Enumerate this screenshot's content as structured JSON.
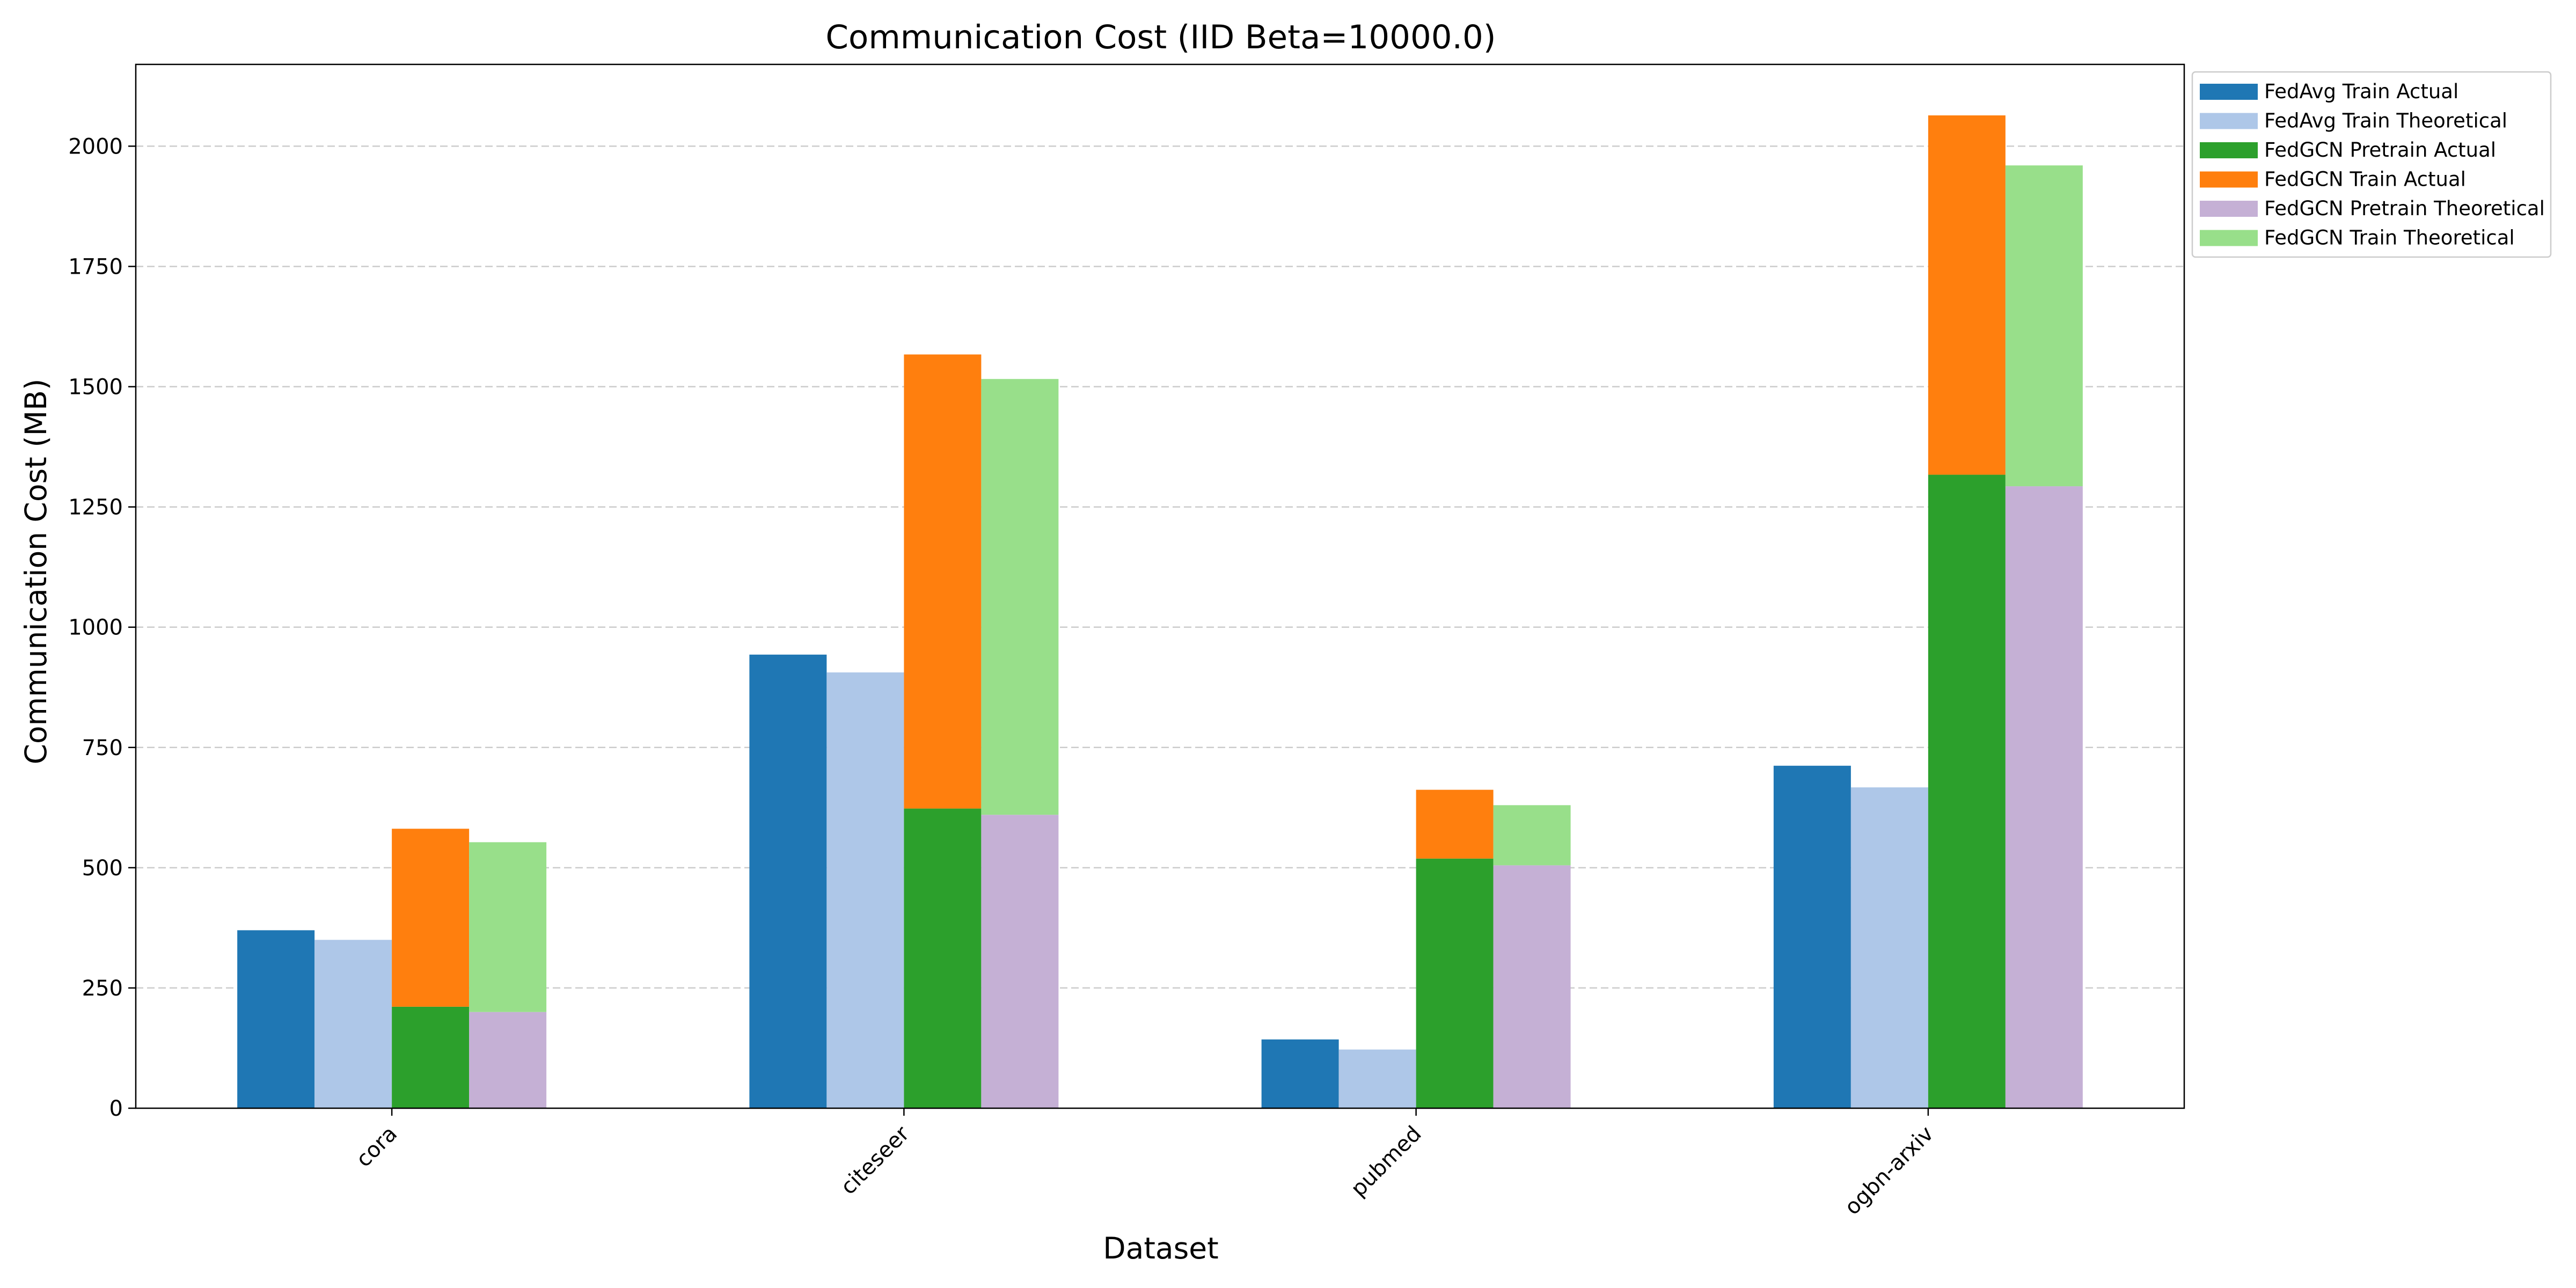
{
  "chart_data": {
    "type": "bar",
    "title": "Communication Cost (IID Beta=10000.0)",
    "xlabel": "Dataset",
    "ylabel": "Communication Cost (MB)",
    "categories": [
      "cora",
      "citeseer",
      "pubmed",
      "ogbn-arxiv"
    ],
    "ylim": [
      0,
      2170
    ],
    "yticks": [
      0,
      250,
      500,
      750,
      1000,
      1250,
      1500,
      1750,
      2000
    ],
    "grid": "y, dashed",
    "legend_position": "outside top-right",
    "series": [
      {
        "name": "FedAvg Train Actual",
        "color": "#1f77b4",
        "values": [
          370,
          943,
          143,
          712
        ]
      },
      {
        "name": "FedAvg Train Theoretical",
        "color": "#aec7e8",
        "values": [
          350,
          906,
          122,
          667
        ]
      },
      {
        "name": "FedGCN Pretrain Actual",
        "color": "#2ca02c",
        "values": [
          211,
          623,
          519,
          1317
        ]
      },
      {
        "name": "FedGCN Train Actual",
        "color": "#ff7f0e",
        "values": [
          370,
          944,
          143,
          747
        ],
        "stacked_on": "FedGCN Pretrain Actual"
      },
      {
        "name": "FedGCN Pretrain Theoretical",
        "color": "#c5b0d5",
        "values": [
          200,
          610,
          505,
          1293
        ]
      },
      {
        "name": "FedGCN Train Theoretical",
        "color": "#98df8a",
        "values": [
          353,
          906,
          125,
          667
        ],
        "stacked_on": "FedGCN Pretrain Theoretical"
      }
    ]
  }
}
